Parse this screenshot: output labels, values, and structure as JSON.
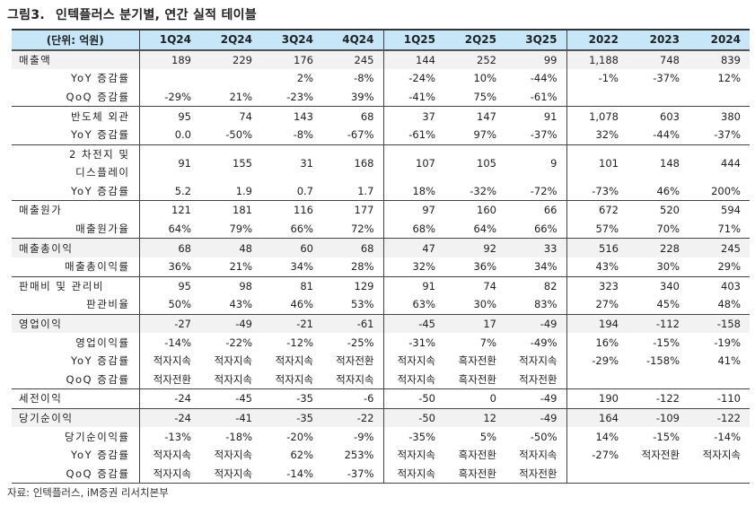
{
  "title": {
    "fig": "그림3.",
    "text": "인텍플러스 분기별, 연간 실적 테이블"
  },
  "headers": [
    "(단위: 억원)",
    "1Q24",
    "2Q24",
    "3Q24",
    "4Q24",
    "1Q25",
    "2Q25",
    "3Q25",
    "2022",
    "2023",
    "2024"
  ],
  "rows": [
    {
      "label": "매출액",
      "align": "left",
      "shaded": true,
      "values": [
        "189",
        "229",
        "176",
        "245",
        "144",
        "252",
        "99",
        "1,188",
        "748",
        "839"
      ]
    },
    {
      "label": "YoY 증감률",
      "align": "right",
      "values": [
        "",
        "",
        "2%",
        "-8%",
        "-24%",
        "10%",
        "-44%",
        "-1%",
        "-37%",
        "12%"
      ]
    },
    {
      "label": "QoQ 증감률",
      "align": "right",
      "sep": true,
      "values": [
        "-29%",
        "21%",
        "-23%",
        "39%",
        "-41%",
        "75%",
        "-61%",
        "",
        "",
        ""
      ]
    },
    {
      "label": "반도체 외관",
      "align": "right",
      "values": [
        "95",
        "74",
        "143",
        "68",
        "37",
        "147",
        "91",
        "1,078",
        "603",
        "380"
      ]
    },
    {
      "label": "YoY 증감률",
      "align": "right",
      "sep": true,
      "values": [
        "0.0",
        "-50%",
        "-8%",
        "-67%",
        "-61%",
        "97%",
        "-37%",
        "32%",
        "-44%",
        "-37%"
      ]
    },
    {
      "label": "2 차전지 및\n디스플레이",
      "align": "right",
      "tall": true,
      "values": [
        "91",
        "155",
        "31",
        "168",
        "107",
        "105",
        "9",
        "101",
        "148",
        "444"
      ]
    },
    {
      "label": "YoY 증감률",
      "align": "right",
      "sep": true,
      "values": [
        "5.2",
        "1.9",
        "0.7",
        "1.7",
        "18%",
        "-32%",
        "-72%",
        "-73%",
        "46%",
        "200%"
      ]
    },
    {
      "label": "매출원가",
      "align": "left",
      "values": [
        "121",
        "181",
        "116",
        "177",
        "97",
        "160",
        "66",
        "672",
        "520",
        "594"
      ]
    },
    {
      "label": "매출원가율",
      "align": "right",
      "sep": true,
      "values": [
        "64%",
        "79%",
        "66%",
        "72%",
        "68%",
        "64%",
        "66%",
        "57%",
        "70%",
        "71%"
      ]
    },
    {
      "label": "매출총이익",
      "align": "left",
      "shaded": true,
      "values": [
        "68",
        "48",
        "60",
        "68",
        "47",
        "92",
        "33",
        "516",
        "228",
        "245"
      ]
    },
    {
      "label": "매출총이익률",
      "align": "right",
      "sep": true,
      "values": [
        "36%",
        "21%",
        "34%",
        "28%",
        "32%",
        "36%",
        "34%",
        "43%",
        "30%",
        "29%"
      ]
    },
    {
      "label": "판매비 및 관리비",
      "align": "left",
      "values": [
        "95",
        "98",
        "81",
        "129",
        "91",
        "74",
        "82",
        "323",
        "340",
        "403"
      ]
    },
    {
      "label": "판관비율",
      "align": "right",
      "sep": true,
      "values": [
        "50%",
        "43%",
        "46%",
        "53%",
        "63%",
        "30%",
        "83%",
        "27%",
        "45%",
        "48%"
      ]
    },
    {
      "label": "영업이익",
      "align": "left",
      "shaded": true,
      "values": [
        "-27",
        "-49",
        "-21",
        "-61",
        "-45",
        "17",
        "-49",
        "194",
        "-112",
        "-158"
      ]
    },
    {
      "label": "영업이익률",
      "align": "right",
      "values": [
        "-14%",
        "-22%",
        "-12%",
        "-25%",
        "-31%",
        "7%",
        "-49%",
        "16%",
        "-15%",
        "-19%"
      ]
    },
    {
      "label": "YoY 증감률",
      "align": "right",
      "values": [
        "적자지속",
        "적자지속",
        "적자지속",
        "적자전환",
        "적자지속",
        "흑자전환",
        "적자지속",
        "-29%",
        "-158%",
        "41%"
      ]
    },
    {
      "label": "QoQ 증감률",
      "align": "right",
      "sep": true,
      "values": [
        "적자전환",
        "적자지속",
        "적자지속",
        "적자지속",
        "적자지속",
        "흑자전환",
        "적자전환",
        "",
        "",
        ""
      ]
    },
    {
      "label": "세전이익",
      "align": "left",
      "sep": true,
      "values": [
        "-24",
        "-45",
        "-35",
        "-6",
        "-50",
        "0",
        "-49",
        "190",
        "-122",
        "-110"
      ]
    },
    {
      "label": "당기순이익",
      "align": "left",
      "shaded": true,
      "values": [
        "-24",
        "-41",
        "-35",
        "-22",
        "-50",
        "12",
        "-49",
        "164",
        "-109",
        "-122"
      ]
    },
    {
      "label": "당기순이익률",
      "align": "right",
      "values": [
        "-13%",
        "-18%",
        "-20%",
        "-9%",
        "-35%",
        "5%",
        "-50%",
        "14%",
        "-15%",
        "-14%"
      ]
    },
    {
      "label": "YoY 증감률",
      "align": "right",
      "values": [
        "적자지속",
        "적자지속",
        "62%",
        "253%",
        "적자지속",
        "흑자전환",
        "적자지속",
        "-27%",
        "적자전환",
        "적자지속"
      ]
    },
    {
      "label": "QoQ 증감률",
      "align": "right",
      "values": [
        "적자지속",
        "적자지속",
        "-14%",
        "-37%",
        "적자지속",
        "흑자전환",
        "적자전환",
        "",
        "",
        ""
      ]
    }
  ],
  "source": "자료: 인텍플러스, iM증권 리서치본부",
  "colors": {
    "header_bg": "#c6e7f8",
    "shaded_row": "#f2f2f2"
  }
}
